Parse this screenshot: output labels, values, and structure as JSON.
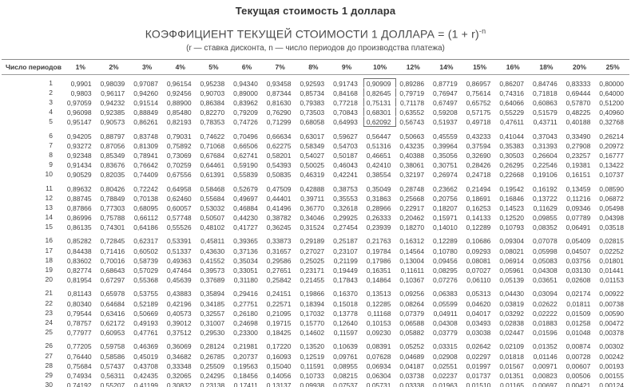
{
  "title": "Текущая стоимость 1 доллара",
  "subtitle": {
    "base": "КОЭФФИЦИЕНТ ТЕКУЩЕЙ СТОИМОСТИ 1 ДОЛЛАРА = (1 + r)",
    "exponent": "-n"
  },
  "note": "(r — ставка дисконта, n — число периодов до производства платежа)",
  "colors": {
    "text": "#3d3d3d",
    "rule_top": "#8c8c8c",
    "rule_bottom": "#4f4f4f",
    "highlight_box_border": "#707070"
  },
  "table": {
    "row_header": "Число периодов",
    "columns": [
      "1%",
      "2%",
      "3%",
      "4%",
      "5%",
      "6%",
      "7%",
      "8%",
      "9%",
      "10%",
      "12%",
      "14%",
      "15%",
      "16%",
      "18%",
      "20%",
      "25%"
    ],
    "highlight": {
      "column": "10%",
      "col_index": 9,
      "row_start": 1,
      "row_end": 5
    },
    "rows": [
      {
        "period": "1",
        "values": [
          "0,9901",
          "0,98039",
          "0,97087",
          "0,96154",
          "0,95238",
          "0,94340",
          "0,93458",
          "0,92593",
          "0,91743",
          "0,90909",
          "0,89286",
          "0,87719",
          "0,86957",
          "0,86207",
          "0,84746",
          "0,83333",
          "0,80000"
        ]
      },
      {
        "period": "2",
        "values": [
          "0,9803",
          "0,96117",
          "0,94260",
          "0,92456",
          "0,90703",
          "0,89000",
          "0,87344",
          "0,85734",
          "0,84168",
          "0,82645",
          "0,79719",
          "0,76947",
          "0,75614",
          "0,74316",
          "0,71818",
          "0,69444",
          "0,64000"
        ]
      },
      {
        "period": "3",
        "values": [
          "0,97059",
          "0,94232",
          "0,91514",
          "0,88900",
          "0,86384",
          "0,83962",
          "0,81630",
          "0,79383",
          "0,77218",
          "0,75131",
          "0,71178",
          "0,67497",
          "0,65752",
          "0,64066",
          "0,60863",
          "0,57870",
          "0,51200"
        ]
      },
      {
        "period": "4",
        "values": [
          "0,96098",
          "0,92385",
          "0,88849",
          "0,85480",
          "0,82270",
          "0,79209",
          "0,76290",
          "0,73503",
          "0,70843",
          "0,68301",
          "0,63552",
          "0,59208",
          "0,57175",
          "0,55229",
          "0,51579",
          "0,48225",
          "0,40960"
        ]
      },
      {
        "period": "5",
        "values": [
          "0,95147",
          "0,90573",
          "0,86261",
          "0,82193",
          "0,78353",
          "0,74726",
          "0,71299",
          "0,68058",
          "0,64993",
          "0,62092",
          "0,56743",
          "0,51937",
          "0,49718",
          "0,47611",
          "0,43711",
          "0,40188",
          "0,32768"
        ]
      },
      {
        "period": "6",
        "values": [
          "0,94205",
          "0,88797",
          "0,83748",
          "0,79031",
          "0,74622",
          "0,70496",
          "0,66634",
          "0,63017",
          "0,59627",
          "0,56447",
          "0,50663",
          "0,45559",
          "0,43233",
          "0,41044",
          "0,37043",
          "0,33490",
          "0,26214"
        ]
      },
      {
        "period": "7",
        "values": [
          "0,93272",
          "0,87056",
          "0,81309",
          "0,75892",
          "0,71068",
          "0,66506",
          "0,62275",
          "0,58349",
          "0,54703",
          "0,51316",
          "0,43235",
          "0,39964",
          "0,37594",
          "0,35383",
          "0,31393",
          "0,27908",
          "0,20972"
        ]
      },
      {
        "period": "8",
        "values": [
          "0,92348",
          "0,85349",
          "0,78941",
          "0,73069",
          "0,67684",
          "0,62741",
          "0,58201",
          "0,54027",
          "0,50187",
          "0,46651",
          "0,40388",
          "0,35056",
          "0,32690",
          "0,30503",
          "0,26604",
          "0,23257",
          "0,16777"
        ]
      },
      {
        "period": "9",
        "values": [
          "0,91434",
          "0,83676",
          "0,76642",
          "0,70259",
          "0,64461",
          "0,59190",
          "0,54393",
          "0,50025",
          "0,46043",
          "0,42410",
          "0,38061",
          "0,30751",
          "0,28426",
          "0,26295",
          "0,22546",
          "0,19381",
          "0,13422"
        ]
      },
      {
        "period": "10",
        "values": [
          "0,90529",
          "0,82035",
          "0,74409",
          "0,67556",
          "0,61391",
          "0,55839",
          "0,50835",
          "0,46319",
          "0,42241",
          "0,38554",
          "0,32197",
          "0,26974",
          "0,24718",
          "0,22668",
          "0,19106",
          "0,16151",
          "0,10737"
        ]
      },
      {
        "period": "11",
        "values": [
          "0,89632",
          "0,80426",
          "0,72242",
          "0,64958",
          "0,58468",
          "0,52679",
          "0,47509",
          "0,42888",
          "0,38753",
          "0,35049",
          "0,28748",
          "0,23662",
          "0,21494",
          "0,19542",
          "0,16192",
          "0,13459",
          "0,08590"
        ]
      },
      {
        "period": "12",
        "values": [
          "0,88745",
          "0,78849",
          "0,70138",
          "0,62460",
          "0,55684",
          "0,49697",
          "0,44401",
          "0,39711",
          "0,35553",
          "0,31863",
          "0,25668",
          "0,20756",
          "0,18691",
          "0,16846",
          "0,13722",
          "0,11216",
          "0,06872"
        ]
      },
      {
        "period": "13",
        "values": [
          "0,87866",
          "0,77303",
          "0,68095",
          "0,60057",
          "0,53032",
          "0,46884",
          "0,41496",
          "0,36770",
          "0,32618",
          "0,28966",
          "0,22917",
          "0,18207",
          "0,16253",
          "0,14523",
          "0,11629",
          "0,09346",
          "0,05498"
        ]
      },
      {
        "period": "14",
        "values": [
          "0,86996",
          "0,75788",
          "0,66112",
          "0,57748",
          "0,50507",
          "0,44230",
          "0,38782",
          "0,34046",
          "0,29925",
          "0,26333",
          "0,20462",
          "0,15971",
          "0,14133",
          "0,12520",
          "0,09855",
          "0,07789",
          "0,04398"
        ]
      },
      {
        "period": "15",
        "values": [
          "0,86135",
          "0,74301",
          "0,64186",
          "0,55526",
          "0,48102",
          "0,41727",
          "0,36245",
          "0,31524",
          "0,27454",
          "0,23939",
          "0,18270",
          "0,14010",
          "0,12289",
          "0,10793",
          "0,08352",
          "0,06491",
          "0,03518"
        ]
      },
      {
        "period": "16",
        "values": [
          "0,85282",
          "0,72845",
          "0,62317",
          "0,53391",
          "0,45811",
          "0,39365",
          "0,33873",
          "0,29189",
          "0,25187",
          "0,21763",
          "0,16312",
          "0,12289",
          "0,10686",
          "0,09304",
          "0,07078",
          "0,05409",
          "0,02815"
        ]
      },
      {
        "period": "17",
        "values": [
          "0,84438",
          "0,71416",
          "0,60502",
          "0,51337",
          "0,43630",
          "0,37136",
          "0,31657",
          "0,27027",
          "0,23107",
          "0,19784",
          "0,14564",
          "0,10780",
          "0,09293",
          "0,08021",
          "0,05998",
          "0,04507",
          "0,02252"
        ]
      },
      {
        "period": "18",
        "values": [
          "0,83602",
          "0,70016",
          "0,58739",
          "0,49363",
          "0,41552",
          "0,35034",
          "0,29586",
          "0,25025",
          "0,21199",
          "0,17986",
          "0,13004",
          "0,09456",
          "0,08081",
          "0,06914",
          "0,05083",
          "0,03756",
          "0,01801"
        ]
      },
      {
        "period": "19",
        "values": [
          "0,82774",
          "0,68643",
          "0,57029",
          "0,47464",
          "0,39573",
          "0,33051",
          "0,27651",
          "0,23171",
          "0,19449",
          "0,16351",
          "0,11611",
          "0,08295",
          "0,07027",
          "0,05961",
          "0,04308",
          "0,03130",
          "0,01441"
        ]
      },
      {
        "period": "20",
        "values": [
          "0,81954",
          "0,67297",
          "0,55368",
          "0,45639",
          "0,37689",
          "0,31180",
          "0,25842",
          "0,21455",
          "0,17843",
          "0,14864",
          "0,10367",
          "0,07276",
          "0,06110",
          "0,05139",
          "0,03651",
          "0,02608",
          "0,01153"
        ]
      },
      {
        "period": "21",
        "values": [
          "0,81143",
          "0,65978",
          "0,53755",
          "0,43883",
          "0,35894",
          "0,29416",
          "0,24151",
          "0,19866",
          "0,16370",
          "0,13513",
          "0,09256",
          "0,06383",
          "0,05313",
          "0,04430",
          "0,03094",
          "0,02174",
          "0,00922"
        ]
      },
      {
        "period": "22",
        "values": [
          "0,80340",
          "0,64684",
          "0,52189",
          "0,42196",
          "0,34185",
          "0,27751",
          "0,22571",
          "0,18394",
          "0,15018",
          "0,12285",
          "0,08264",
          "0,05599",
          "0,04620",
          "0,03819",
          "0,02622",
          "0,01811",
          "0,00738"
        ]
      },
      {
        "period": "23",
        "values": [
          "0,79544",
          "0,63416",
          "0,50669",
          "0,40573",
          "0,32557",
          "0,26180",
          "0,21095",
          "0,17032",
          "0,13778",
          "0,11168",
          "0,07379",
          "0,04911",
          "0,04017",
          "0,03292",
          "0,02222",
          "0,01509",
          "0,00590"
        ]
      },
      {
        "period": "24",
        "values": [
          "0,78757",
          "0,62172",
          "0,49193",
          "0,39012",
          "0,31007",
          "0,24698",
          "0,19715",
          "0,15770",
          "0,12640",
          "0,10153",
          "0,06588",
          "0,04308",
          "0,03493",
          "0,02838",
          "0,01883",
          "0,01258",
          "0,00472"
        ]
      },
      {
        "period": "25",
        "values": [
          "0,77977",
          "0,60953",
          "0,47761",
          "0,37512",
          "0,29530",
          "0,23300",
          "0,18425",
          "0,14602",
          "0,11597",
          "0,09230",
          "0,05882",
          "0,03779",
          "0,03038",
          "0,02447",
          "0,01596",
          "0,01048",
          "0,00378"
        ]
      },
      {
        "period": "26",
        "values": [
          "0,77205",
          "0,59758",
          "0,46369",
          "0,36069",
          "0,28124",
          "0,21981",
          "0,17220",
          "0,13520",
          "0,10639",
          "0,08391",
          "0,05252",
          "0,03315",
          "0,02642",
          "0,02109",
          "0,01352",
          "0,00874",
          "0,00302"
        ]
      },
      {
        "period": "27",
        "values": [
          "0,76440",
          "0,58586",
          "0,45019",
          "0,34682",
          "0,26785",
          "0,20737",
          "0,16093",
          "0,12519",
          "0,09761",
          "0,07628",
          "0,04689",
          "0,02908",
          "0,02297",
          "0,01818",
          "0,01146",
          "0,00728",
          "0,00242"
        ]
      },
      {
        "period": "28",
        "values": [
          "0,75684",
          "0,57437",
          "0,43708",
          "0,33348",
          "0,25509",
          "0,19563",
          "0,15040",
          "0,11591",
          "0,08955",
          "0,06934",
          "0,04187",
          "0,02551",
          "0,01997",
          "0,01567",
          "0,00971",
          "0,00607",
          "0,00193"
        ]
      },
      {
        "period": "29",
        "values": [
          "0,74934",
          "0,56311",
          "0,42435",
          "0,32065",
          "0,24295",
          "0,18456",
          "0,14056",
          "0,10733",
          "0,08215",
          "0,06304",
          "0,03738",
          "0,02237",
          "0,01737",
          "0,01351",
          "0,00823",
          "0,00506",
          "0,00155"
        ]
      },
      {
        "period": "30",
        "values": [
          "0,74192",
          "0,55207",
          "0,41199",
          "0,30832",
          "0,23138",
          "0,17411",
          "0,13137",
          "0,09938",
          "0,07537",
          "0,05731",
          "0,03338",
          "0,01963",
          "0,01510",
          "0,01165",
          "0,00697",
          "0,00421",
          "0,00124"
        ]
      }
    ]
  }
}
